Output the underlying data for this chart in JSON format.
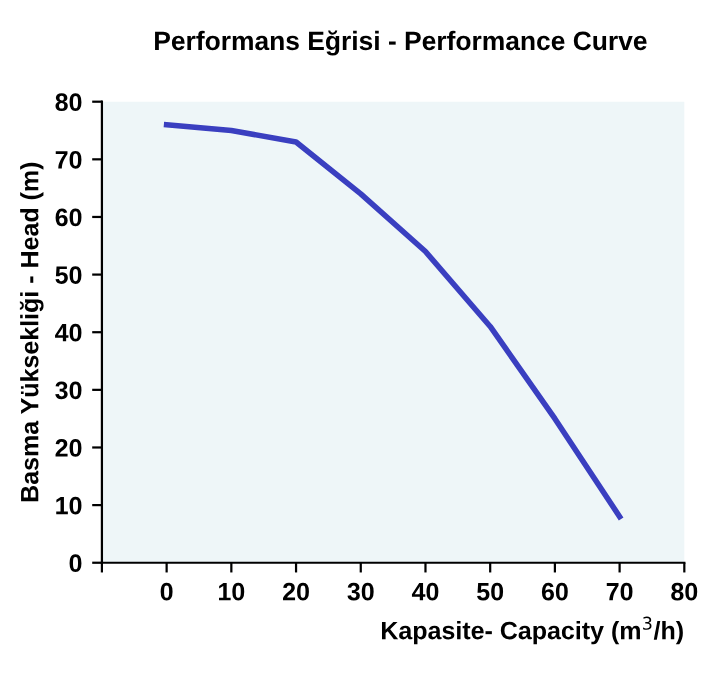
{
  "chart_data": {
    "type": "line",
    "title": "Performans Eğrisi - Performance Curve",
    "xlabel": "Kapasite- Capacity (m$^{3}$/h)",
    "ylabel": "Basma Yüksekliği - Head (m)",
    "x": [
      0,
      10,
      20,
      30,
      40,
      50,
      60,
      70
    ],
    "series": [
      {
        "color": "#3a3fc0",
        "values": [
          76,
          75,
          73,
          64,
          54,
          41,
          25,
          8
        ]
      }
    ],
    "xlim": [
      -10,
      80
    ],
    "xticks": [
      {
        "value": -10,
        "label": null
      },
      0,
      10,
      20,
      30,
      40,
      50,
      60,
      70,
      80
    ],
    "ylim": [
      0,
      80
    ],
    "yticks": [
      0,
      10,
      20,
      30,
      40,
      50,
      60,
      70,
      80
    ],
    "grid": false,
    "marker": "none",
    "line_style": "solid"
  }
}
